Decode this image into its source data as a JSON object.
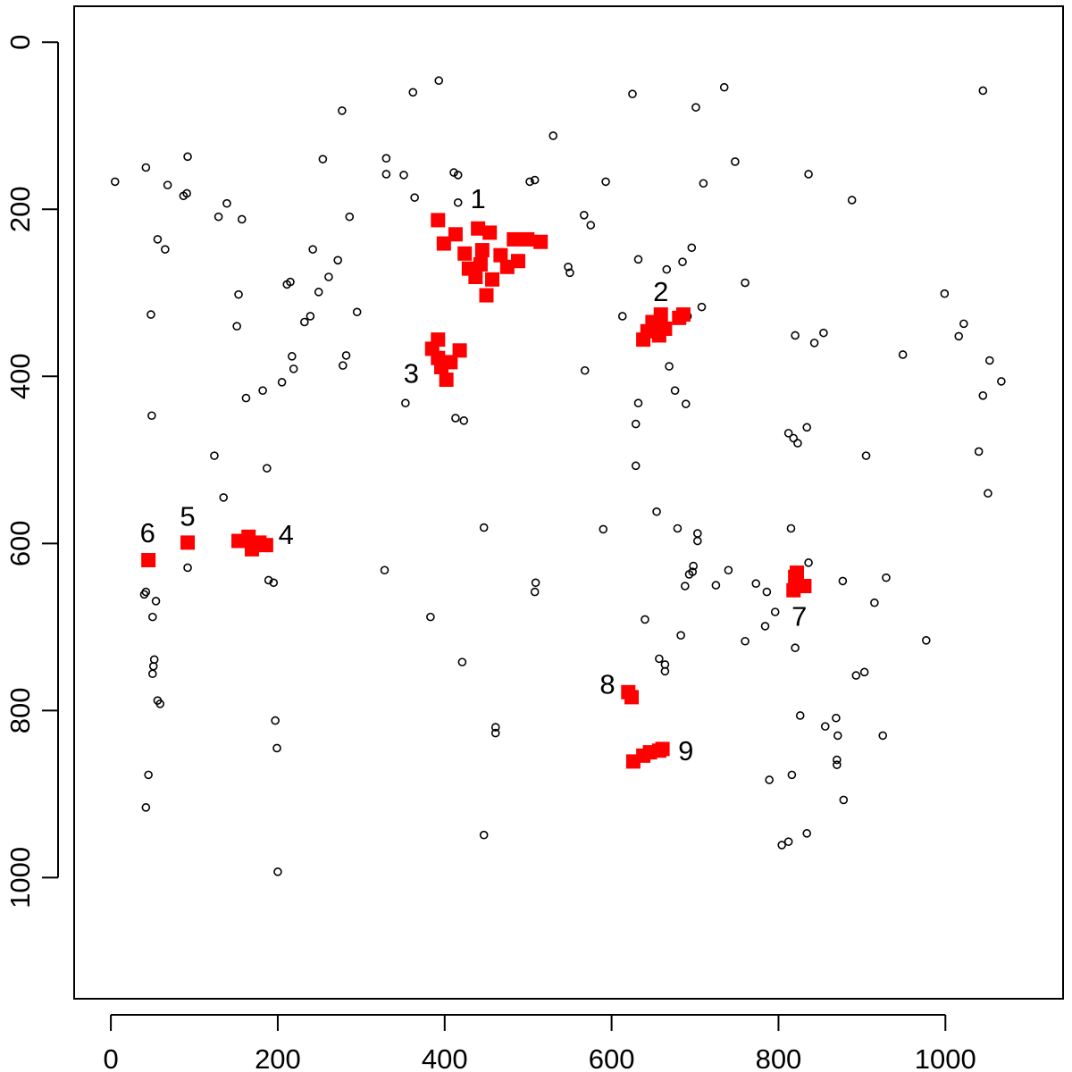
{
  "chart_data": {
    "type": "scatter",
    "xlim": [
      -44,
      1141
    ],
    "ylim": [
      1145,
      -43
    ],
    "xticks": [
      0,
      200,
      400,
      600,
      800,
      1000
    ],
    "yticks": [
      0,
      200,
      400,
      600,
      800,
      1000
    ],
    "series": [
      {
        "color": "#000000",
        "marker": "circle",
        "x": [
          5,
          42,
          68,
          92,
          87,
          91,
          56,
          65,
          48,
          49,
          129,
          139,
          157,
          124,
          135,
          187,
          162,
          182,
          151,
          153,
          211,
          215,
          219,
          217,
          205,
          232,
          239,
          242,
          249,
          261,
          272,
          278,
          282,
          286,
          277,
          254,
          295,
          330,
          330,
          351,
          364,
          362,
          393,
          353,
          413,
          423,
          416,
          411,
          416,
          447,
          461,
          461,
          502,
          508,
          530,
          548,
          550,
          568,
          567,
          575,
          593,
          613,
          625,
          632,
          632,
          629,
          629,
          701,
          735,
          710,
          748,
          836,
          888,
          685,
          696,
          666,
          669,
          676,
          689,
          691,
          708,
          760,
          820,
          854,
          843,
          812,
          818,
          823,
          834,
          949,
          905,
          999,
          1022,
          1016,
          1045,
          1040,
          1045,
          1053,
          1051,
          1067,
          654,
          679,
          703,
          703,
          698,
          697,
          693,
          688,
          740,
          725,
          773,
          760,
          784,
          796,
          815,
          820,
          836,
          877,
          915,
          929,
          977,
          786,
          640,
          657,
          664,
          664,
          683,
          590,
          383,
          421,
          447,
          509,
          508,
          328,
          893,
          903,
          826,
          856,
          869,
          871,
          870,
          870,
          878,
          925,
          816,
          789,
          804,
          812,
          834,
          197,
          199,
          200,
          42,
          45,
          51,
          52,
          50,
          56,
          59,
          50,
          54,
          40,
          42,
          92,
          189,
          195
        ],
        "y": [
          167,
          150,
          171,
          137,
          184,
          181,
          236,
          248,
          326,
          447,
          209,
          193,
          212,
          495,
          545,
          510,
          426,
          417,
          340,
          302,
          290,
          287,
          391,
          376,
          407,
          335,
          328,
          248,
          299,
          281,
          261,
          387,
          375,
          209,
          82,
          140,
          323,
          139,
          158,
          159,
          186,
          60,
          46,
          432,
          450,
          453,
          192,
          156,
          159,
          581,
          820,
          827,
          167,
          165,
          112,
          269,
          276,
          393,
          207,
          219,
          167,
          328,
          62,
          260,
          432,
          457,
          507,
          78,
          54,
          169,
          143,
          158,
          189,
          263,
          246,
          272,
          388,
          417,
          433,
          328,
          317,
          288,
          351,
          348,
          360,
          468,
          474,
          480,
          461,
          374,
          495,
          301,
          337,
          352,
          58,
          490,
          423,
          381,
          540,
          406,
          562,
          582,
          588,
          597,
          627,
          634,
          637,
          651,
          632,
          650,
          648,
          717,
          699,
          682,
          582,
          725,
          623,
          645,
          671,
          641,
          716,
          658,
          691,
          738,
          753,
          745,
          710,
          583,
          688,
          742,
          949,
          647,
          658,
          632,
          758,
          754,
          806,
          819,
          809,
          830,
          859,
          865,
          907,
          830,
          877,
          883,
          961,
          957,
          947,
          812,
          845,
          993,
          916,
          877,
          747,
          739,
          756,
          788,
          792,
          688,
          669,
          661,
          658,
          629,
          644,
          647
        ]
      },
      {
        "color": "#ff0000",
        "marker": "square",
        "x": [
          392,
          399,
          413,
          424,
          440,
          445,
          454,
          467,
          450,
          437,
          429,
          483,
          488,
          515,
          443,
          457,
          475,
          499,
          638,
          649,
          659,
          657,
          681,
          686,
          664,
          643,
          385,
          392,
          396,
          402,
          418,
          407,
          392,
          153,
          165,
          178,
          186,
          169,
          92,
          45,
          820,
          818,
          831,
          822,
          620,
          624,
          626,
          638,
          657,
          661,
          646
        ],
        "y": [
          213,
          241,
          230,
          253,
          223,
          249,
          228,
          255,
          303,
          281,
          271,
          236,
          262,
          239,
          266,
          284,
          269,
          236,
          356,
          335,
          326,
          351,
          330,
          326,
          343,
          346,
          367,
          378,
          389,
          404,
          369,
          383,
          356,
          597,
          592,
          599,
          602,
          607,
          599,
          620,
          640,
          656,
          651,
          635,
          778,
          784,
          861,
          854,
          848,
          846,
          850
        ]
      }
    ],
    "annotations": [
      {
        "text": "1",
        "x": 440,
        "y": 190
      },
      {
        "text": "2",
        "x": 659,
        "y": 301
      },
      {
        "text": "3",
        "x": 360,
        "y": 399
      },
      {
        "text": "4",
        "x": 210,
        "y": 592
      },
      {
        "text": "5",
        "x": 92,
        "y": 570
      },
      {
        "text": "6",
        "x": 44,
        "y": 590
      },
      {
        "text": "7",
        "x": 825,
        "y": 690
      },
      {
        "text": "8",
        "x": 595,
        "y": 771
      },
      {
        "text": "9",
        "x": 689,
        "y": 851
      }
    ]
  }
}
